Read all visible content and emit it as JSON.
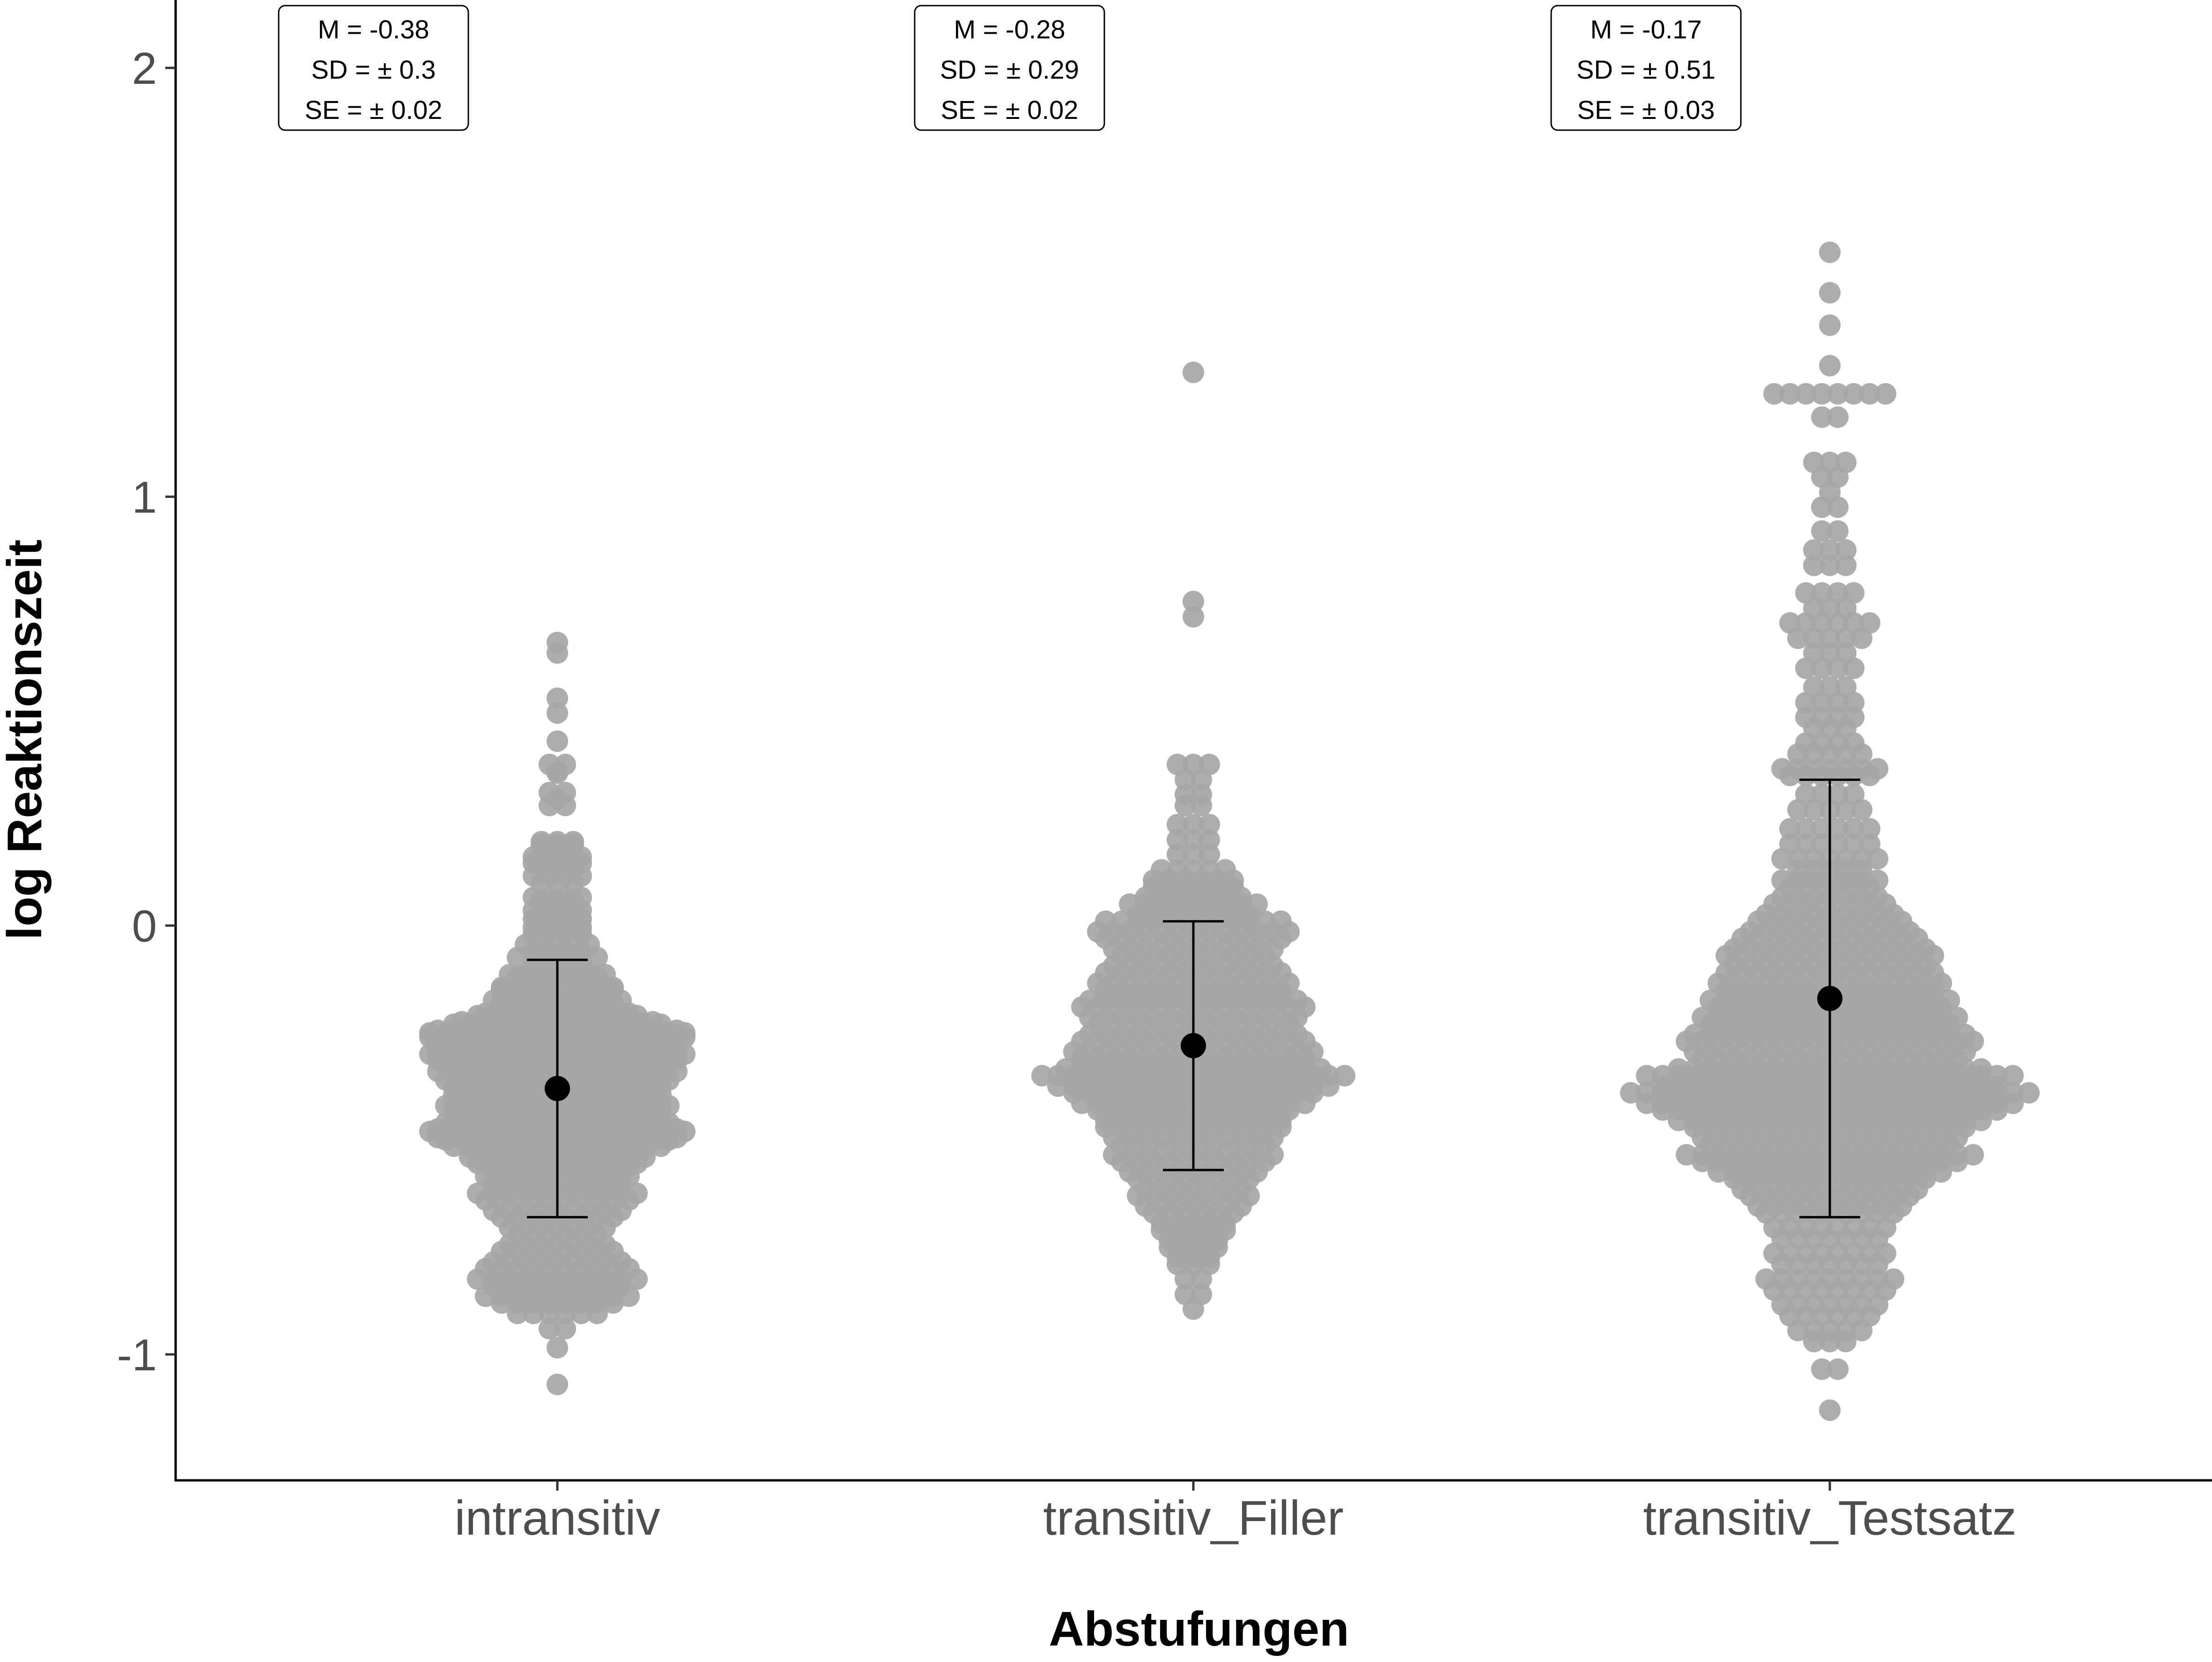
{
  "chart_data": {
    "type": "scatter",
    "subtype": "beeswarm-with-mean-and-sd",
    "xlabel": "Abstufungen",
    "ylabel": "log Reaktionszeit",
    "ylim": [
      -1.27,
      2.15
    ],
    "yticks": [
      -1,
      0,
      1,
      2
    ],
    "ytick_labels": [
      "-1",
      "0",
      "1",
      "2"
    ],
    "grid": false,
    "legend": "none",
    "colors": {
      "points": "#a6a6a6",
      "mean": "#000000",
      "axis": "#000000",
      "tick_label": "#4d4d4d",
      "background": "#ffffff"
    },
    "categories": [
      "intransitiv",
      "transitiv_Filler",
      "transitiv_Testsatz"
    ],
    "summary": [
      {
        "category": "intransitiv",
        "mean": -0.38,
        "sd": 0.3,
        "se": 0.02,
        "lower": -0.68,
        "upper": -0.08
      },
      {
        "category": "transitiv_Filler",
        "mean": -0.28,
        "sd": 0.29,
        "se": 0.02,
        "lower": -0.57,
        "upper": 0.01
      },
      {
        "category": "transitiv_Testsatz",
        "mean": -0.17,
        "sd": 0.51,
        "se": 0.03,
        "lower": -0.68,
        "upper": 0.34
      }
    ],
    "annotations": [
      {
        "category": "intransitiv",
        "lines": [
          "M = -0.38",
          "SD = ±  0.3",
          "SE = ±  0.02"
        ]
      },
      {
        "category": "transitiv_Filler",
        "lines": [
          "M = -0.28",
          "SD = ±  0.29",
          "SE = ±  0.02"
        ]
      },
      {
        "category": "transitiv_Testsatz",
        "lines": [
          "M = -0.17",
          "SD = ±  0.51",
          "SE = ±  0.03"
        ]
      }
    ],
    "distributions": [
      {
        "category": "intransitiv",
        "values": [
          0.66,
          0.64,
          0.53,
          0.5,
          0.43,
          0.38,
          0.36,
          0.36,
          0.31,
          0.3,
          0.28,
          0.2,
          0.19,
          0.17,
          0.16,
          0.15,
          0.14,
          0.12,
          0.1,
          0.07,
          0.06,
          0.04,
          0.03,
          0.02,
          0.01,
          0.0,
          -0.02,
          -0.04,
          -0.06,
          -0.07,
          -0.09,
          -0.11,
          -0.12,
          -0.14,
          -0.15,
          -0.17,
          -0.18,
          -0.2,
          -0.21,
          -0.22,
          -0.23,
          -0.24,
          -0.25,
          -0.25,
          -0.26,
          -0.27,
          -0.28,
          -0.29,
          -0.3,
          -0.31,
          -0.32,
          -0.33,
          -0.34,
          -0.35,
          -0.36,
          -0.37,
          -0.38,
          -0.39,
          -0.4,
          -0.41,
          -0.42,
          -0.43,
          -0.44,
          -0.45,
          -0.46,
          -0.47,
          -0.48,
          -0.49,
          -0.5,
          -0.51,
          -0.52,
          -0.53,
          -0.54,
          -0.55,
          -0.56,
          -0.58,
          -0.6,
          -0.62,
          -0.64,
          -0.66,
          -0.68,
          -0.7,
          -0.72,
          -0.74,
          -0.76,
          -0.78,
          -0.8,
          -0.82,
          -0.84,
          -0.86,
          -0.88,
          -0.9,
          -0.94,
          -0.98,
          -1.07
        ],
        "counts": [
          1,
          1,
          1,
          1,
          1,
          2,
          1,
          1,
          2,
          1,
          2,
          3,
          3,
          3,
          4,
          4,
          3,
          4,
          3,
          4,
          3,
          4,
          3,
          4,
          3,
          4,
          4,
          5,
          4,
          6,
          4,
          7,
          6,
          8,
          8,
          9,
          8,
          10,
          11,
          13,
          14,
          16,
          17,
          15,
          17,
          16,
          15,
          16,
          17,
          16,
          15,
          14,
          16,
          14,
          15,
          14,
          13,
          14,
          13,
          14,
          15,
          14,
          13,
          14,
          15,
          16,
          17,
          16,
          15,
          14,
          12,
          11,
          12,
          11,
          10,
          10,
          9,
          11,
          10,
          9,
          8,
          7,
          6,
          7,
          8,
          9,
          10,
          11,
          9,
          10,
          8,
          6,
          2,
          1,
          1
        ]
      },
      {
        "category": "transitiv_Filler",
        "values": [
          1.29,
          0.76,
          0.72,
          0.38,
          0.34,
          0.31,
          0.28,
          0.24,
          0.2,
          0.17,
          0.13,
          0.11,
          0.09,
          0.07,
          0.05,
          0.03,
          0.01,
          -0.01,
          -0.03,
          -0.05,
          -0.07,
          -0.09,
          -0.11,
          -0.13,
          -0.15,
          -0.17,
          -0.19,
          -0.21,
          -0.23,
          -0.25,
          -0.27,
          -0.29,
          -0.31,
          -0.33,
          -0.35,
          -0.37,
          -0.39,
          -0.41,
          -0.43,
          -0.45,
          -0.47,
          -0.49,
          -0.51,
          -0.53,
          -0.55,
          -0.57,
          -0.59,
          -0.61,
          -0.63,
          -0.65,
          -0.67,
          -0.69,
          -0.71,
          -0.73,
          -0.75,
          -0.77,
          -0.79,
          -0.82,
          -0.86,
          -0.89
        ],
        "counts": [
          1,
          1,
          1,
          3,
          2,
          2,
          2,
          3,
          3,
          3,
          5,
          6,
          6,
          7,
          9,
          8,
          12,
          13,
          12,
          11,
          10,
          11,
          12,
          13,
          12,
          14,
          15,
          14,
          13,
          14,
          15,
          16,
          15,
          17,
          20,
          18,
          16,
          15,
          13,
          12,
          12,
          11,
          10,
          11,
          10,
          9,
          8,
          7,
          8,
          7,
          6,
          5,
          5,
          4,
          4,
          3,
          3,
          2,
          2,
          1
        ]
      },
      {
        "category": "transitiv_Testsatz",
        "values": [
          1.57,
          1.48,
          1.4,
          1.31,
          1.24,
          1.19,
          1.08,
          1.05,
          1.01,
          0.98,
          0.92,
          0.88,
          0.84,
          0.78,
          0.74,
          0.71,
          0.67,
          0.64,
          0.6,
          0.56,
          0.52,
          0.49,
          0.46,
          0.43,
          0.4,
          0.37,
          0.35,
          0.31,
          0.27,
          0.23,
          0.19,
          0.16,
          0.13,
          0.11,
          0.09,
          0.07,
          0.05,
          0.03,
          0.01,
          -0.01,
          -0.03,
          -0.05,
          -0.07,
          -0.09,
          -0.11,
          -0.13,
          -0.15,
          -0.17,
          -0.19,
          -0.21,
          -0.23,
          -0.25,
          -0.27,
          -0.29,
          -0.31,
          -0.33,
          -0.35,
          -0.37,
          -0.39,
          -0.41,
          -0.43,
          -0.45,
          -0.47,
          -0.49,
          -0.51,
          -0.53,
          -0.55,
          -0.57,
          -0.59,
          -0.61,
          -0.63,
          -0.65,
          -0.67,
          -0.7,
          -0.73,
          -0.76,
          -0.79,
          -0.82,
          -0.85,
          -0.88,
          -0.91,
          -0.94,
          -0.97,
          -1.03,
          -1.13
        ],
        "counts": [
          1,
          1,
          1,
          1,
          8,
          2,
          3,
          2,
          1,
          2,
          2,
          3,
          3,
          4,
          3,
          6,
          5,
          3,
          4,
          3,
          4,
          4,
          3,
          4,
          5,
          7,
          6,
          4,
          5,
          6,
          6,
          7,
          5,
          7,
          6,
          7,
          8,
          9,
          10,
          11,
          12,
          13,
          14,
          13,
          14,
          15,
          14,
          16,
          15,
          17,
          16,
          18,
          19,
          18,
          17,
          20,
          24,
          22,
          26,
          24,
          22,
          20,
          18,
          17,
          16,
          19,
          17,
          15,
          13,
          12,
          11,
          10,
          9,
          8,
          7,
          8,
          7,
          9,
          8,
          7,
          6,
          5,
          3,
          2,
          1
        ]
      }
    ]
  }
}
